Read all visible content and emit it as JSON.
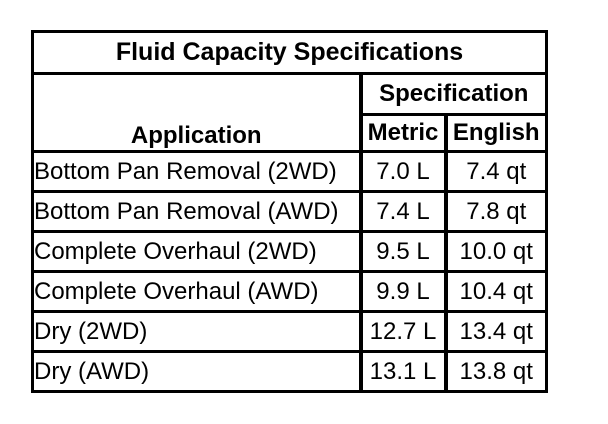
{
  "page": {
    "background_color": "#ffffff",
    "border_color": "#000000"
  },
  "table": {
    "title": "Fluid Capacity Specifications",
    "headers": {
      "application": "Application",
      "specification": "Specification",
      "metric": "Metric",
      "english": "English"
    },
    "rows": [
      {
        "application": "Bottom Pan Removal (2WD)",
        "metric": "7.0 L",
        "english": "7.4 qt"
      },
      {
        "application": "Bottom Pan Removal (AWD)",
        "metric": "7.4 L",
        "english": "7.8 qt"
      },
      {
        "application": "Complete Overhaul (2WD)",
        "metric": "9.5 L",
        "english": "10.0 qt"
      },
      {
        "application": "Complete Overhaul (AWD)",
        "metric": "9.9 L",
        "english": "10.4 qt"
      },
      {
        "application": "Dry (2WD)",
        "metric": "12.7 L",
        "english": "13.4 qt"
      },
      {
        "application": "Dry (AWD)",
        "metric": "13.1 L",
        "english": "13.8 qt"
      }
    ]
  }
}
